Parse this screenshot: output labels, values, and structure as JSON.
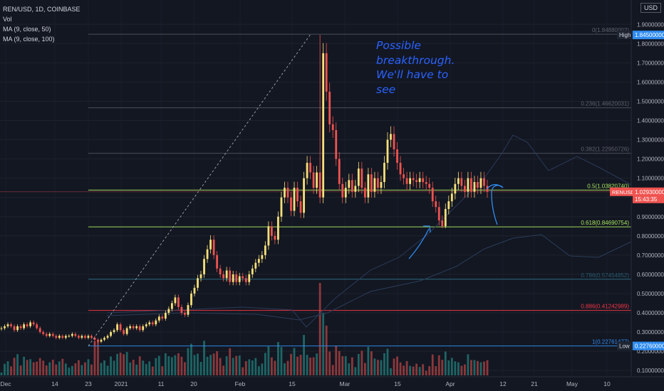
{
  "header": {
    "symbol_line": "REN/USD, 1D, COINBASE",
    "vol_label": "Vol",
    "ma1_label": "MA (9, close, 50)",
    "ma2_label": "MA (9, close, 100)",
    "currency_button": "USD"
  },
  "annotation": {
    "lines": [
      "Possible",
      "breakthrough.",
      "We'll have to",
      "see"
    ],
    "color": "#2a62ff"
  },
  "price_badges": {
    "high": {
      "label": "High",
      "value": "1.84500000"
    },
    "low": {
      "label": "Low",
      "value": "0.22760000"
    },
    "last": {
      "symbol": "RENUSD",
      "value": "1.02930000",
      "countdown": "15:43:35"
    }
  },
  "colors": {
    "background": "#131722",
    "up": "#f7e07a",
    "down": "#ef5350",
    "fib_green": "#a6e35c",
    "fib_red": "#f23645",
    "fib_blue": "#2f8cf0",
    "fib_gray": "#787b86",
    "fib_teal": "#2d6f86",
    "vol_up": "#26a69a",
    "vol_down": "#ef5350"
  },
  "chart_data": {
    "type": "candlestick",
    "y_axis_labels": [
      "1.90000000",
      "1.80000000",
      "1.70000000",
      "1.60000000",
      "1.50000000",
      "1.40000000",
      "1.30000000",
      "1.20000000",
      "1.10000000",
      "1.00000000",
      "0.90000000",
      "0.80000000",
      "0.70000000",
      "0.60000000",
      "0.50000000",
      "0.40000000",
      "0.30000000",
      "0.20000000",
      "0.10000000"
    ],
    "x_axis_labels": [
      "Dec",
      "14",
      "23",
      "2021",
      "11",
      "20",
      "Feb",
      "15",
      "Mar",
      "15",
      "Apr",
      "12",
      "21",
      "May",
      "10"
    ],
    "fib_levels": [
      {
        "label": "0(1.84880002)",
        "price": 1.8488,
        "color": "gray"
      },
      {
        "label": "0.236(1.46620031)",
        "price": 1.4662,
        "color": "gray"
      },
      {
        "label": "0.382(1.22950726)",
        "price": 1.2295,
        "color": "gray"
      },
      {
        "label": "0.5(1.03820740)",
        "price": 1.0382,
        "color": "green"
      },
      {
        "label": "0.618(0.84690754)",
        "price": 0.8469,
        "color": "green"
      },
      {
        "label": "0.786(0.57454852)",
        "price": 0.5745,
        "color": "teal"
      },
      {
        "label": "0.886(0.41242989)",
        "price": 0.4124,
        "color": "red"
      },
      {
        "label": "1(0.22761477)",
        "price": 0.2276,
        "color": "blue"
      }
    ],
    "closes": [
      0.32,
      0.33,
      0.34,
      0.33,
      0.31,
      0.33,
      0.32,
      0.34,
      0.33,
      0.35,
      0.34,
      0.32,
      0.3,
      0.29,
      0.28,
      0.29,
      0.28,
      0.27,
      0.28,
      0.27,
      0.28,
      0.28,
      0.29,
      0.28,
      0.27,
      0.28,
      0.27,
      0.28,
      0.27,
      0.26,
      0.25,
      0.26,
      0.27,
      0.28,
      0.3,
      0.31,
      0.34,
      0.31,
      0.29,
      0.32,
      0.33,
      0.32,
      0.33,
      0.31,
      0.33,
      0.34,
      0.35,
      0.34,
      0.36,
      0.38,
      0.37,
      0.4,
      0.42,
      0.45,
      0.48,
      0.43,
      0.4,
      0.39,
      0.44,
      0.5,
      0.53,
      0.58,
      0.6,
      0.68,
      0.73,
      0.78,
      0.7,
      0.63,
      0.6,
      0.58,
      0.62,
      0.56,
      0.6,
      0.56,
      0.59,
      0.58,
      0.56,
      0.6,
      0.63,
      0.66,
      0.68,
      0.7,
      0.75,
      0.85,
      0.8,
      0.78,
      0.9,
      1.0,
      1.05,
      1.0,
      0.93,
      1.05,
      0.98,
      0.92,
      1.1,
      1.18,
      1.13,
      1.05,
      1.13,
      1.0,
      1.75,
      1.55,
      1.38,
      1.35,
      1.2,
      1.07,
      1.0,
      1.05,
      1.09,
      1.03,
      1.06,
      1.15,
      1.05,
      1.0,
      1.12,
      1.03,
      1.1,
      1.05,
      1.08,
      1.18,
      1.3,
      1.33,
      1.25,
      1.18,
      1.12,
      1.1,
      1.07,
      1.1,
      1.09,
      1.08,
      1.1,
      1.08,
      1.07,
      1.05,
      0.98,
      0.95,
      0.88,
      0.85,
      0.94,
      0.98,
      1.02,
      1.07,
      1.1,
      1.06,
      1.03,
      1.1,
      1.03,
      1.08,
      1.05,
      1.1,
      1.06,
      1.03
    ],
    "fib_drawing": {
      "from_price": 0.2276,
      "to_price": 1.8488,
      "style": "dashed"
    },
    "moving_averages": [
      "MA (9, close, 50)",
      "MA (9, close, 100)"
    ]
  }
}
